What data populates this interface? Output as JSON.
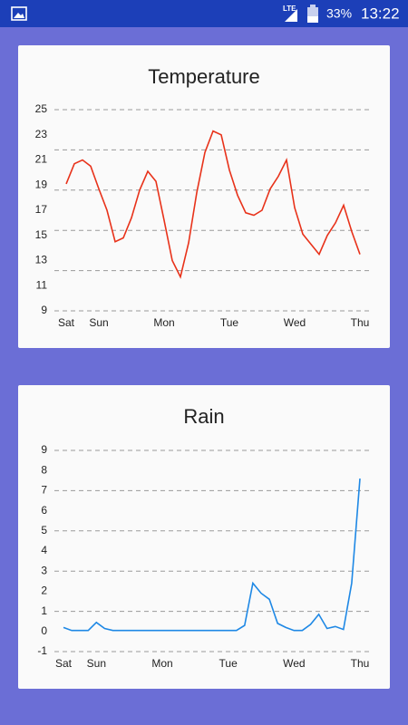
{
  "status_bar": {
    "network": "LTE",
    "battery": "33%",
    "time": "13:22"
  },
  "chart_data": [
    {
      "type": "line",
      "title": "Temperature",
      "x": [
        0,
        1,
        2,
        3,
        4,
        5,
        6,
        7,
        8,
        9,
        10,
        11,
        12,
        13,
        14,
        15,
        16,
        17,
        18,
        19,
        20,
        21,
        22,
        23,
        24,
        25,
        26,
        27,
        28,
        29,
        30,
        31,
        32,
        33,
        34,
        35,
        36
      ],
      "series": [
        {
          "name": "Temperature",
          "color": "#e8321a",
          "values": [
            19.1,
            20.7,
            21.0,
            20.5,
            18.7,
            17.0,
            14.5,
            14.8,
            16.4,
            18.6,
            20.1,
            19.3,
            16.2,
            13.0,
            11.7,
            14.4,
            18.4,
            21.6,
            23.3,
            23.0,
            20.2,
            18.2,
            16.8,
            16.6,
            17.0,
            18.7,
            19.7,
            21.0,
            17.2,
            15.1,
            14.3,
            13.5,
            15.0,
            16.0,
            17.4,
            15.3,
            13.5
          ]
        }
      ],
      "xlim": [
        0,
        36
      ],
      "xticks": [
        {
          "value": 0,
          "label": "Sat"
        },
        {
          "value": 4,
          "label": "Sun"
        },
        {
          "value": 12,
          "label": "Mon"
        },
        {
          "value": 20,
          "label": "Tue"
        },
        {
          "value": 28,
          "label": "Wed"
        },
        {
          "value": 36,
          "label": "Thu"
        }
      ],
      "ylim": [
        9,
        25
      ],
      "yticks": [
        25,
        23,
        21,
        19,
        17,
        15,
        13,
        11,
        9
      ],
      "ygrid": [
        25,
        21.8,
        18.6,
        15.4,
        12.2,
        9
      ]
    },
    {
      "type": "line",
      "title": "Rain",
      "x": [
        0,
        1,
        2,
        3,
        4,
        5,
        6,
        7,
        8,
        9,
        10,
        11,
        12,
        13,
        14,
        15,
        16,
        17,
        18,
        19,
        20,
        21,
        22,
        23,
        24,
        25,
        26,
        27,
        28,
        29,
        30,
        31,
        32,
        33,
        34,
        35,
        36
      ],
      "series": [
        {
          "name": "Rain",
          "color": "#1e88e5",
          "values": [
            0.2,
            0.05,
            0.05,
            0.05,
            0.45,
            0.15,
            0.05,
            0.05,
            0.05,
            0.05,
            0.05,
            0.05,
            0.05,
            0.05,
            0.05,
            0.05,
            0.05,
            0.05,
            0.05,
            0.05,
            0.05,
            0.05,
            0.3,
            2.4,
            1.9,
            1.6,
            0.4,
            0.2,
            0.05,
            0.05,
            0.35,
            0.85,
            0.15,
            0.25,
            0.1,
            2.4,
            7.6
          ]
        }
      ],
      "xlim": [
        0,
        36
      ],
      "xticks": [
        {
          "value": 0,
          "label": "Sat"
        },
        {
          "value": 4,
          "label": "Sun"
        },
        {
          "value": 12,
          "label": "Mon"
        },
        {
          "value": 20,
          "label": "Tue"
        },
        {
          "value": 28,
          "label": "Wed"
        },
        {
          "value": 36,
          "label": "Thu"
        }
      ],
      "ylim": [
        -1,
        9
      ],
      "yticks": [
        9,
        8,
        7,
        6,
        5,
        4,
        3,
        2,
        1,
        0,
        -1
      ],
      "ygrid": [
        9,
        7,
        5,
        3,
        1,
        -1
      ]
    }
  ]
}
